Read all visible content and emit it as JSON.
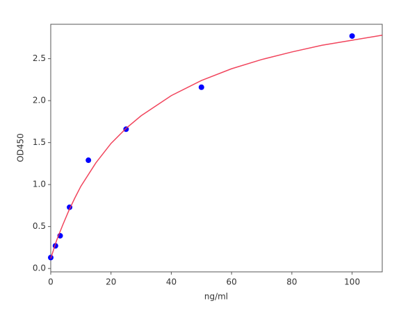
{
  "chart_data": {
    "type": "scatter",
    "x_label": "ng/ml",
    "y_label": "OD450",
    "xlim": [
      0,
      110
    ],
    "ylim": [
      -0.04,
      2.91
    ],
    "xticks": [
      0,
      20,
      40,
      60,
      80,
      100
    ],
    "yticks": [
      {
        "value": 0,
        "label": "0.0"
      },
      0.5,
      {
        "value": 1,
        "label": "1.0"
      },
      1.5,
      {
        "value": 2,
        "label": "2.0"
      },
      2.5
    ],
    "series": [
      {
        "type": "scatter",
        "color": "#0000ff",
        "x": [
          0,
          1.5625,
          3.125,
          6.25,
          12.5,
          25,
          50,
          100
        ],
        "values": [
          0.13,
          0.27,
          0.39,
          0.73,
          1.29,
          1.66,
          2.16,
          2.77
        ]
      },
      {
        "type": "line",
        "color": "#f0304a",
        "x": [
          0,
          1,
          2,
          4,
          6,
          8,
          10,
          15,
          20,
          25,
          30,
          40,
          50,
          60,
          70,
          80,
          90,
          100,
          110
        ],
        "values": [
          0.12,
          0.23,
          0.34,
          0.52,
          0.69,
          0.84,
          0.98,
          1.26,
          1.49,
          1.67,
          1.82,
          2.06,
          2.24,
          2.38,
          2.49,
          2.58,
          2.66,
          2.72,
          2.78
        ]
      }
    ]
  }
}
